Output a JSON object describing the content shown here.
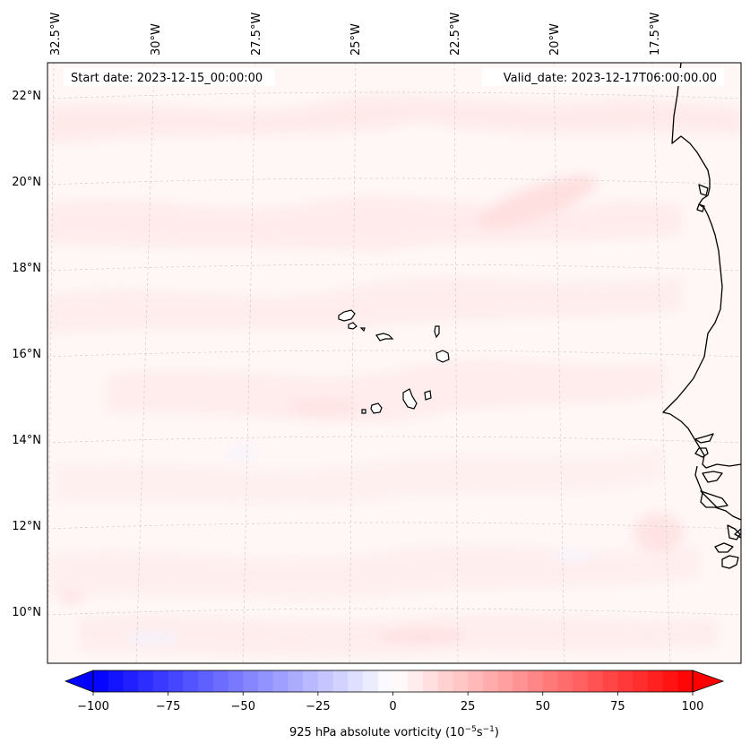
{
  "header": {
    "start_date": "Start date: 2023-12-15_00:00:00",
    "valid_date": "Valid_date: 2023-12-17T06:00:00.00"
  },
  "map": {
    "lon_labels": [
      "32.5°W",
      "30°W",
      "27.5°W",
      "25°W",
      "22.5°W",
      "20°W",
      "17.5°W"
    ],
    "lat_labels": [
      "22°N",
      "20°N",
      "18°N",
      "16°N",
      "14°N",
      "12°N",
      "10°N"
    ],
    "gridlines": true,
    "field": "925 hPa absolute vorticity"
  },
  "colorbar": {
    "label_prefix": "925 hPa absolute vorticity (10",
    "label_exp1": "−5",
    "label_mid": "s",
    "label_exp2": "−1",
    "label_suffix": ")",
    "ticks": [
      "−100",
      "−75",
      "−50",
      "−25",
      "0",
      "25",
      "50",
      "75",
      "100"
    ],
    "min": -100,
    "max": 100,
    "colormap": "bwr",
    "extend": "both"
  },
  "colors": {
    "negative": "#0000ff",
    "neutral": "#ffffff",
    "positive": "#ff0000",
    "coastline": "#000000"
  }
}
